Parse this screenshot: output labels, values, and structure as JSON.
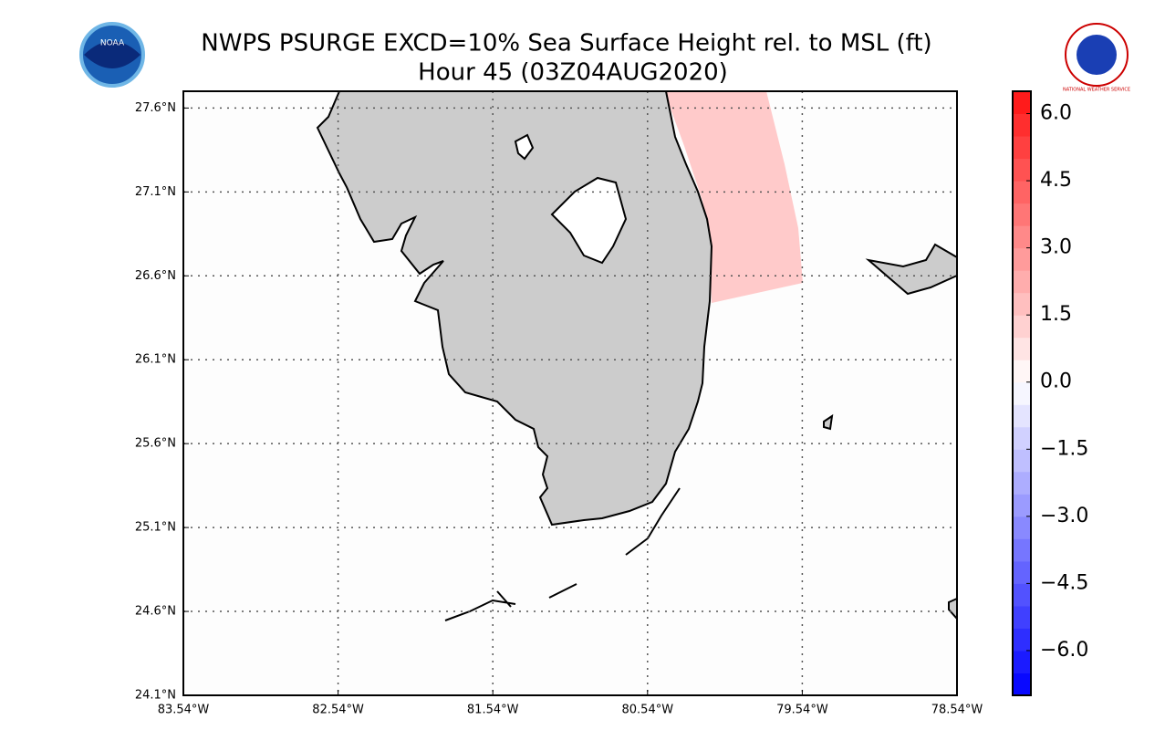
{
  "title": "NWPS PSURGE EXCD=10% Sea Surface Height rel. to MSL (ft)",
  "subtitle": "Hour 45 (03Z04AUG2020)",
  "logos": {
    "left": "NOAA",
    "right": "NATIONAL WEATHER SERVICE"
  },
  "map": {
    "xlim": [
      -83.54,
      -78.54
    ],
    "ylim": [
      24.1,
      27.7
    ],
    "xticks": [
      {
        "value": -83.54,
        "label": "83.54°W"
      },
      {
        "value": -82.54,
        "label": "82.54°W"
      },
      {
        "value": -81.54,
        "label": "81.54°W"
      },
      {
        "value": -80.54,
        "label": "80.54°W"
      },
      {
        "value": -79.54,
        "label": "79.54°W"
      },
      {
        "value": -78.54,
        "label": "78.54°W"
      }
    ],
    "yticks": [
      {
        "value": 24.1,
        "label": "24.1°N"
      },
      {
        "value": 24.6,
        "label": "24.6°N"
      },
      {
        "value": 25.1,
        "label": "25.1°N"
      },
      {
        "value": 25.6,
        "label": "25.6°N"
      },
      {
        "value": 26.1,
        "label": "26.1°N"
      },
      {
        "value": 26.6,
        "label": "26.6°N"
      },
      {
        "value": 27.1,
        "label": "27.1°N"
      },
      {
        "value": 27.6,
        "label": "27.6°N"
      }
    ],
    "grid": true
  },
  "colorbar": {
    "lim": [
      -7.0,
      6.5
    ],
    "step": 0.5,
    "colors": [
      "#0000ff",
      "#ffffff",
      "#ff0000"
    ],
    "ticks": [
      {
        "value": 6.0,
        "label": "6.0"
      },
      {
        "value": 4.5,
        "label": "4.5"
      },
      {
        "value": 3.0,
        "label": "3.0"
      },
      {
        "value": 1.5,
        "label": "1.5"
      },
      {
        "value": 0.0,
        "label": "0.0"
      },
      {
        "value": -1.5,
        "label": "−1.5"
      },
      {
        "value": -3.0,
        "label": "−3.0"
      },
      {
        "value": -4.5,
        "label": "−4.5"
      },
      {
        "value": -6.0,
        "label": "−6.0"
      }
    ]
  }
}
